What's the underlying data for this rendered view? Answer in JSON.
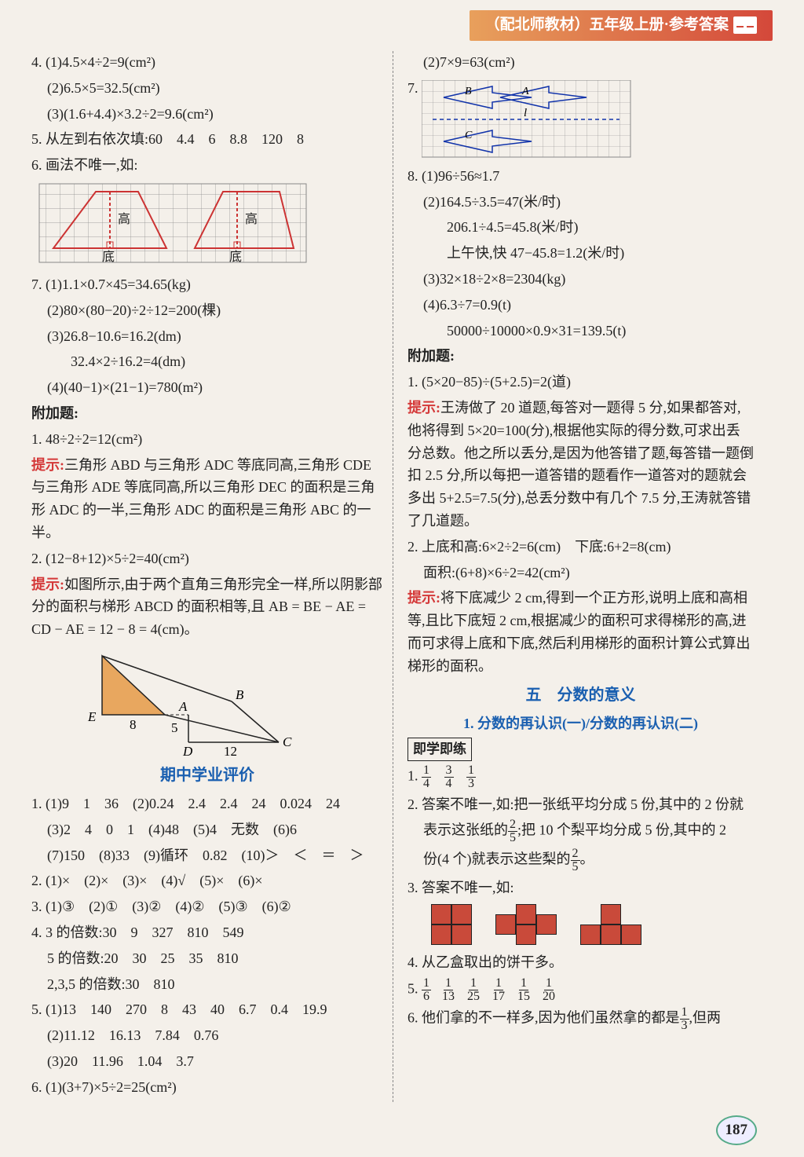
{
  "header": {
    "text": "（配北师教材）五年级上册·参考答案"
  },
  "page_number": "187",
  "colors": {
    "red": "#d43838",
    "blue": "#1a5fb0",
    "accent": "#c94a3a",
    "grid": "#888",
    "triangle_fill": "#e8a75f"
  },
  "left": {
    "l4_1": "4. (1)4.5×4÷2=9(cm²)",
    "l4_2": "(2)6.5×5=32.5(cm²)",
    "l4_3": "(3)(1.6+4.4)×3.2÷2=9.6(cm²)",
    "l5": "5. 从左到右依次填:60　4.4　6　8.8　120　8",
    "l6": "6. 画法不唯一,如:",
    "fig6": {
      "label_gao": "高",
      "label_di": "底"
    },
    "l7_1": "7. (1)1.1×0.7×45=34.65(kg)",
    "l7_2": "(2)80×(80−20)÷2÷12=200(棵)",
    "l7_3": "(3)26.8−10.6=16.2(dm)",
    "l7_3b": "32.4×2÷16.2=4(dm)",
    "l7_4": "(4)(40−1)×(21−1)=780(m²)",
    "fujia": "附加题:",
    "f1": "1. 48÷2÷2=12(cm²)",
    "hint": "提示:",
    "f1h": "三角形 ABD 与三角形 ADC 等底同高,三角形 CDE 与三角形 ADE 等底同高,所以三角形 DEC 的面积是三角形 ADC 的一半,三角形 ADC 的面积是三角形 ABC 的一半。",
    "f2": "2. (12−8+12)×5÷2=40(cm²)",
    "f2h": "如图所示,由于两个直角三角形完全一样,所以阴影部分的面积与梯形 ABCD 的面积相等,且 AB = BE − AE = CD − AE = 12 − 8 = 4(cm)。",
    "fig_triangle": {
      "E": "E",
      "A": "A",
      "B": "B",
      "C": "C",
      "D": "D",
      "n8": "8",
      "n5": "5",
      "n12": "12"
    },
    "midterm": "期中学业评价",
    "m1_1": "1. (1)9　1　36　(2)0.24　2.4　2.4　24　0.024　24",
    "m1_2": "(3)2　4　0　1　(4)48　(5)4　无数　(6)6",
    "m1_3": "(7)150　(8)33　(9)循环　0.82　(10)＞　＜　＝　＞",
    "m2": "2. (1)×　(2)×　(3)×　(4)√　(5)×　(6)×",
    "m3": "3. (1)③　(2)①　(3)②　(4)②　(5)③　(6)②",
    "m4_1": "4. 3 的倍数:30　9　327　810　549",
    "m4_2": "5 的倍数:20　30　25　35　810",
    "m4_3": "2,3,5 的倍数:30　810",
    "m5_1": "5. (1)13　140　270　8　43　40　6.7　0.4　19.9",
    "m5_2": "(2)11.12　16.13　7.84　0.76",
    "m5_3": "(3)20　11.96　1.04　3.7",
    "m6": "6. (1)(3+7)×5÷2=25(cm²)"
  },
  "right": {
    "r6_2": "(2)7×9=63(cm²)",
    "r7": "7.",
    "fig7": {
      "B": "B",
      "A": "A",
      "C": "C",
      "l": "l"
    },
    "r8_1": "8. (1)96÷56≈1.7",
    "r8_2": "(2)164.5÷3.5=47(米/时)",
    "r8_2b": "206.1÷4.5=45.8(米/时)",
    "r8_2c": "上午快,快 47−45.8=1.2(米/时)",
    "r8_3": "(3)32×18÷2×8=2304(kg)",
    "r8_4": "(4)6.3÷7=0.9(t)",
    "r8_4b": "50000÷10000×0.9×31=139.5(t)",
    "fujia": "附加题:",
    "f1": "1. (5×20−85)÷(5+2.5)=2(道)",
    "hint": "提示:",
    "f1h": "王涛做了 20 道题,每答对一题得 5 分,如果都答对,他将得到 5×20=100(分),根据他实际的得分数,可求出丢分总数。他之所以丢分,是因为他答错了题,每答错一题倒扣 2.5 分,所以每把一道答错的题看作一道答对的题就会多出 5+2.5=7.5(分),总丢分数中有几个 7.5 分,王涛就答错了几道题。",
    "f2_1": "2. 上底和高:6×2÷2=6(cm)　下底:6+2=8(cm)",
    "f2_2": "面积:(6+8)×6÷2=42(cm²)",
    "f2h": "将下底减少 2 cm,得到一个正方形,说明上底和高相等,且比下底短 2 cm,根据减少的面积可求得梯形的高,进而可求得上底和下底,然后利用梯形的面积计算公式算出梯形的面积。",
    "sec5": "五　分数的意义",
    "sec5_1": "1. 分数的再认识(一)/分数的再认识(二)",
    "jxjl": "即学即练",
    "p1_a": "1",
    "p1_b": "4",
    "p1_c": "3",
    "p1_d": "4",
    "p1_e": "1",
    "p1_f": "3",
    "p2a": "2. 答案不唯一,如:把一张纸平均分成 5 份,其中的 2 份就",
    "p2_n1": "2",
    "p2_d1": "5",
    "p2b": "表示这张纸的",
    "p2c": ";把 10 个梨平均分成 5 份,其中的 2",
    "p2d": "份(4 个)就表示这些梨的",
    "p2_n2": "2",
    "p2_d2": "5",
    "p2e": "。",
    "p3": "3. 答案不唯一,如:",
    "p4": "4. 从乙盒取出的饼干多。",
    "p5": "5.",
    "p5_f": [
      [
        "1",
        "6"
      ],
      [
        "1",
        "13"
      ],
      [
        "1",
        "25"
      ],
      [
        "1",
        "17"
      ],
      [
        "1",
        "15"
      ],
      [
        "1",
        "20"
      ]
    ],
    "p6a": "6. 他们拿的不一样多,因为他们虽然拿的都是",
    "p6_n": "1",
    "p6_d": "3",
    "p6b": ",但两"
  }
}
